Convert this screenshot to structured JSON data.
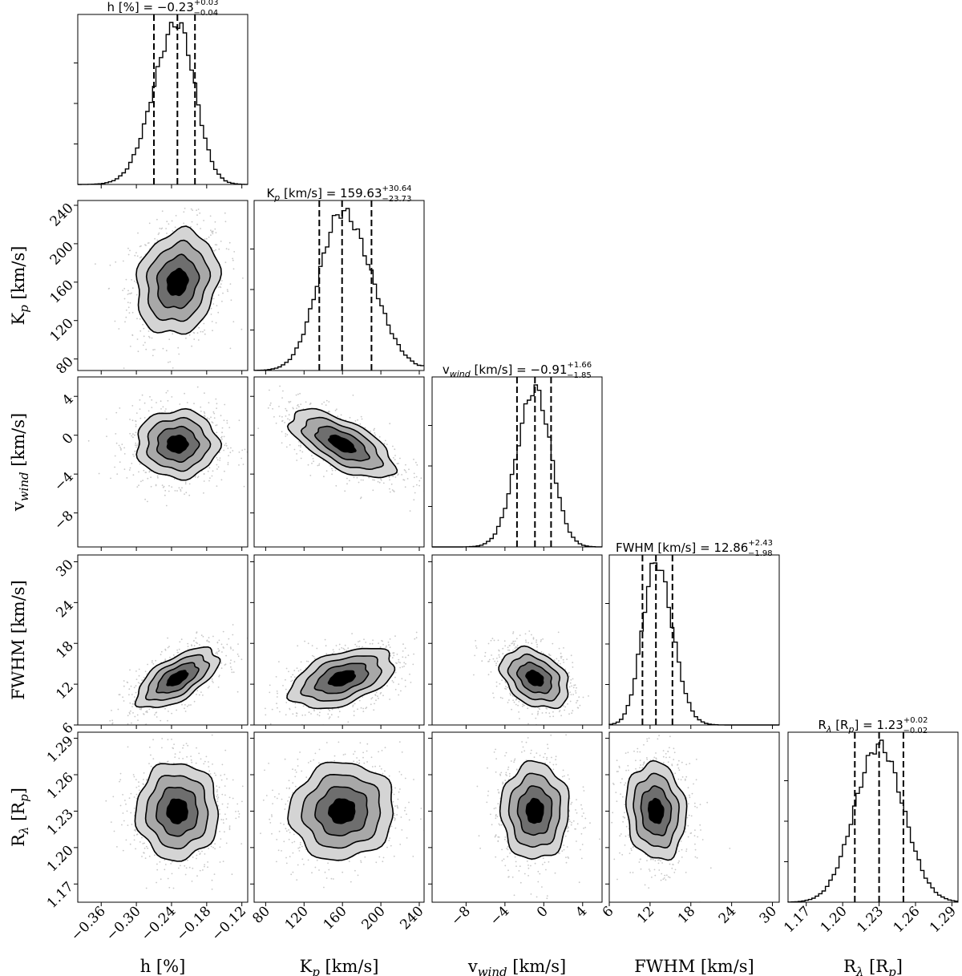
{
  "chart_data": {
    "type": "scatter",
    "description": "corner plot of posterior samples",
    "parameters": [
      {
        "key": "h",
        "label_main": "h",
        "label_sub": "",
        "label_tail": " [%]",
        "title_main": "h [%]",
        "title_sub": "",
        "title_tail": "",
        "median": -0.23,
        "plus": 0.03,
        "minus": 0.04,
        "median_text": "−0.23",
        "plus_text": "+0.03",
        "minus_text": "−0.04",
        "range": [
          -0.4,
          -0.11
        ],
        "ticks": [
          -0.36,
          -0.3,
          -0.24,
          -0.18,
          -0.12
        ],
        "tick_labels": [
          "−0.36",
          "−0.30",
          "−0.24",
          "−0.18",
          "−0.12"
        ],
        "quantiles": [
          -0.27,
          -0.23,
          -0.2
        ]
      },
      {
        "key": "Kp",
        "label_main": "K",
        "label_sub": "p",
        "label_tail": " [km/s]",
        "title_main": "K",
        "title_sub": "p",
        "title_tail": " [km/s]",
        "median": 159.63,
        "plus": 30.64,
        "minus": 23.73,
        "median_text": "159.63",
        "plus_text": "+30.64",
        "minus_text": "−23.73",
        "range": [
          68,
          245
        ],
        "ticks": [
          80,
          120,
          160,
          200,
          240
        ],
        "tick_labels": [
          "80",
          "120",
          "160",
          "200",
          "240"
        ],
        "quantiles": [
          135.9,
          159.63,
          190.27
        ]
      },
      {
        "key": "vwind",
        "label_main": "v",
        "label_sub": "wind",
        "label_tail": " [km/s]",
        "title_main": "v",
        "title_sub": "wind",
        "title_tail": " [km/s]",
        "median": -0.91,
        "plus": 1.66,
        "minus": 1.85,
        "median_text": "−0.91",
        "plus_text": "+1.66",
        "minus_text": "−1.85",
        "range": [
          -11.5,
          6.0
        ],
        "ticks": [
          -8,
          -4,
          0,
          4
        ],
        "tick_labels": [
          "−8",
          "−4",
          "0",
          "4"
        ],
        "quantiles": [
          -2.76,
          -0.91,
          0.75
        ]
      },
      {
        "key": "FWHM",
        "label_main": "FWHM",
        "label_sub": "",
        "label_tail": " [km/s]",
        "title_main": "FWHM [km/s]",
        "title_sub": "",
        "title_tail": "",
        "median": 12.86,
        "plus": 2.43,
        "minus": 1.98,
        "median_text": "12.86",
        "plus_text": "+2.43",
        "minus_text": "−1.98",
        "range": [
          6,
          31
        ],
        "ticks": [
          6,
          12,
          18,
          24,
          30
        ],
        "tick_labels": [
          "6",
          "12",
          "18",
          "24",
          "30"
        ],
        "quantiles": [
          10.88,
          12.86,
          15.29
        ]
      },
      {
        "key": "Rlambda",
        "label_main": "R",
        "label_sub": "λ",
        "label_tail": " [R",
        "label_sub2": "p",
        "label_tail2": "]",
        "title_main": "R",
        "title_sub": "λ",
        "title_tail": " [R",
        "title_sub2": "p",
        "title_tail2": "]",
        "median": 1.23,
        "plus": 0.02,
        "minus": 0.02,
        "median_text": "1.23",
        "plus_text": "+0.02",
        "minus_text": "−0.02",
        "range": [
          1.155,
          1.295
        ],
        "ticks": [
          1.17,
          1.2,
          1.23,
          1.26,
          1.29
        ],
        "tick_labels": [
          "1.17",
          "1.20",
          "1.23",
          "1.26",
          "1.29"
        ],
        "quantiles": [
          1.21,
          1.23,
          1.25
        ]
      }
    ],
    "correlations": {
      "Kp|h": 0.15,
      "vwind|h": 0.0,
      "vwind|Kp": -0.65,
      "FWHM|h": 0.62,
      "FWHM|Kp": 0.45,
      "FWHM|vwind": -0.35,
      "Rlambda|h": 0.0,
      "Rlambda|Kp": 0.05,
      "Rlambda|vwind": 0.0,
      "Rlambda|FWHM": -0.1
    },
    "contour_levels_sigma": [
      0.5,
      1.0,
      1.5,
      2.0
    ],
    "quantile_levels": [
      0.16,
      0.5,
      0.84
    ]
  },
  "colors": {
    "points": "#9a9a9a",
    "fill_outer": "#d4d4d4",
    "fill_2": "#a8a8a8",
    "fill_3": "#6e6e6e",
    "fill_inner": "#000000",
    "line": "#000000"
  }
}
